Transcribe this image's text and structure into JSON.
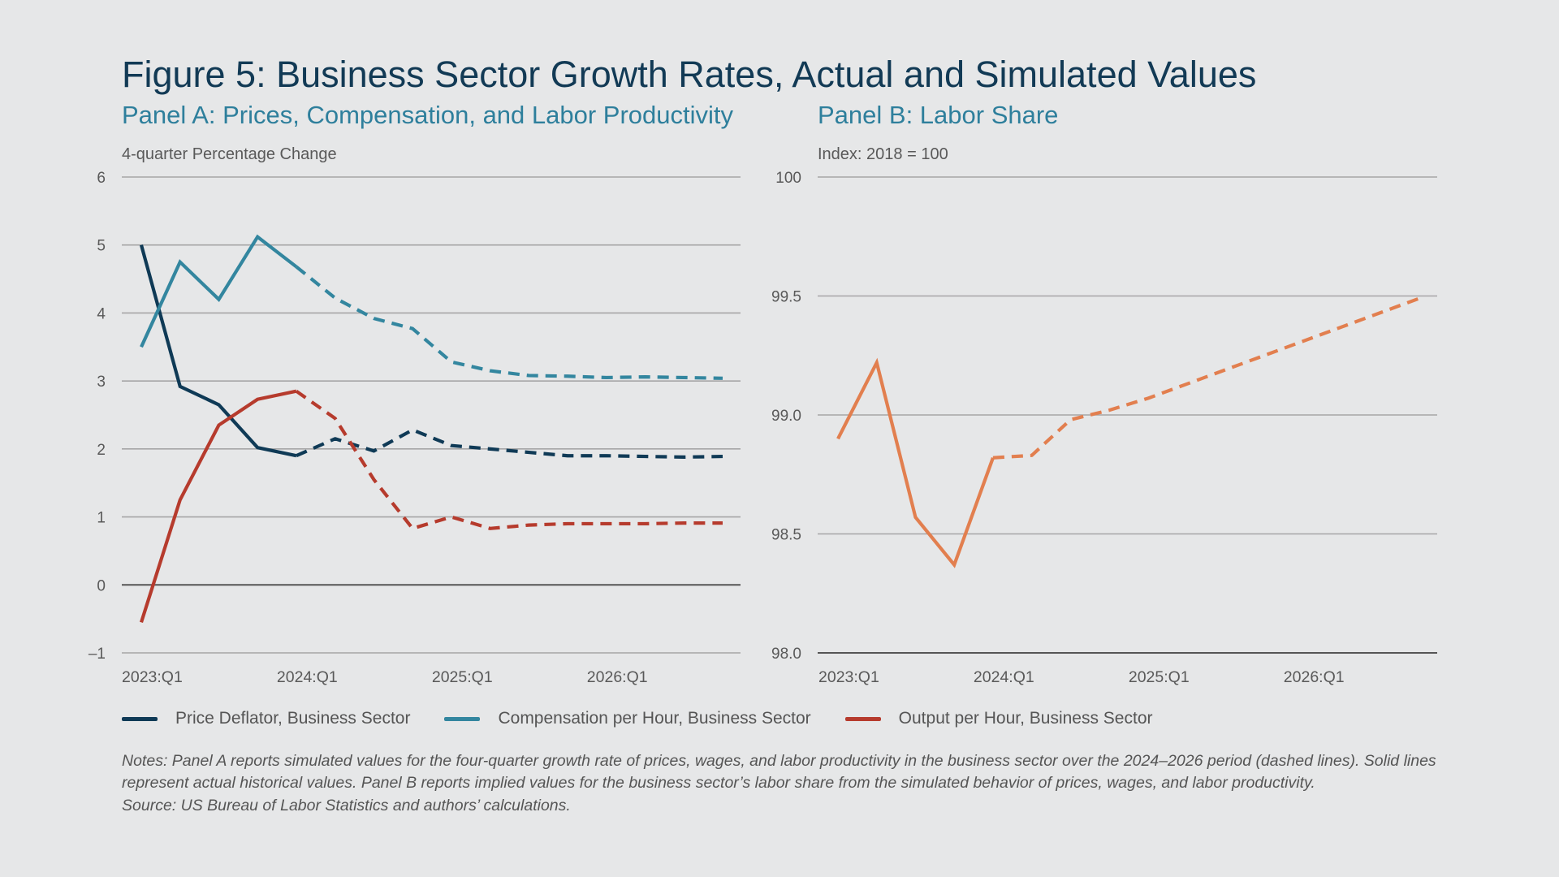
{
  "title": "Figure 5: Business Sector Growth Rates, Actual and Simulated Values",
  "notes": "Notes: Panel A reports simulated values for the four-quarter growth rate of prices, wages, and labor productivity in the business sector over the 2024–2026 period (dashed lines). Solid lines represent actual historical values. Panel B reports implied values for the business sector’s labor share from the simulated behavior of prices, wages, and labor productivity.",
  "source": "Source: US Bureau of Labor Statistics and authors’ calculations.",
  "colors": {
    "price": "#0f3a56",
    "comp": "#33869f",
    "output": "#b63b2d",
    "labor_share": "#e27f4f",
    "grid": "#a6a6a6",
    "zero": "#555555"
  },
  "legend": [
    {
      "label": "Price Deflator, Business Sector",
      "color": "#0f3a56"
    },
    {
      "label": "Compensation per Hour, Business Sector",
      "color": "#33869f"
    },
    {
      "label": "Output per Hour, Business Sector",
      "color": "#b63b2d"
    }
  ],
  "chart_data": [
    {
      "type": "line",
      "title": "Panel A: Prices, Compensation, and Labor Productivity",
      "ylabel": "4-quarter Percentage Change",
      "ylim": [
        -1,
        6
      ],
      "yticks": [
        "6",
        "5",
        "4",
        "3",
        "2",
        "1",
        "0",
        "–1"
      ],
      "x": [
        "2023:Q1",
        "2023:Q2",
        "2023:Q3",
        "2023:Q4",
        "2024:Q1",
        "2024:Q2",
        "2024:Q3",
        "2024:Q4",
        "2025:Q1",
        "2025:Q2",
        "2025:Q3",
        "2025:Q4",
        "2026:Q1",
        "2026:Q2",
        "2026:Q3",
        "2026:Q4"
      ],
      "xtick_labels": [
        "2023:Q1",
        "2024:Q1",
        "2025:Q1",
        "2026:Q1"
      ],
      "actual_through": "2024:Q1",
      "grid": true,
      "series": [
        {
          "name": "Price Deflator, Business Sector",
          "key": "price",
          "values": [
            5.0,
            2.92,
            2.65,
            2.02,
            1.9,
            2.15,
            1.97,
            2.28,
            2.05,
            2.0,
            1.95,
            1.9,
            1.9,
            1.89,
            1.88,
            1.89
          ]
        },
        {
          "name": "Compensation per Hour, Business Sector",
          "key": "comp",
          "values": [
            3.5,
            4.75,
            4.2,
            5.12,
            4.68,
            4.22,
            3.92,
            3.77,
            3.28,
            3.15,
            3.08,
            3.07,
            3.05,
            3.06,
            3.05,
            3.04
          ]
        },
        {
          "name": "Output per Hour, Business Sector",
          "key": "output",
          "values": [
            -0.55,
            1.25,
            2.35,
            2.73,
            2.85,
            2.45,
            1.55,
            0.83,
            1.0,
            0.83,
            0.88,
            0.9,
            0.9,
            0.9,
            0.91,
            0.91
          ]
        }
      ]
    },
    {
      "type": "line",
      "title": "Panel B: Labor Share",
      "ylabel": "Index: 2018 = 100",
      "ylim": [
        98.0,
        100
      ],
      "yticks": [
        "100",
        "99.5",
        "99.0",
        "98.5",
        "98.0"
      ],
      "x": [
        "2023:Q1",
        "2023:Q2",
        "2023:Q3",
        "2023:Q4",
        "2024:Q1",
        "2024:Q2",
        "2024:Q3",
        "2024:Q4",
        "2025:Q1",
        "2025:Q2",
        "2025:Q3",
        "2025:Q4",
        "2026:Q1",
        "2026:Q2",
        "2026:Q3",
        "2026:Q4"
      ],
      "xtick_labels": [
        "2023:Q1",
        "2024:Q1",
        "2025:Q1",
        "2026:Q1"
      ],
      "actual_through": "2024:Q1",
      "grid": true,
      "series": [
        {
          "key": "labor_share",
          "values": [
            98.9,
            99.22,
            98.57,
            98.37,
            98.82,
            98.83,
            98.98,
            99.02,
            99.07,
            99.13,
            99.19,
            99.25,
            99.31,
            99.37,
            99.43,
            99.49
          ]
        }
      ]
    }
  ]
}
